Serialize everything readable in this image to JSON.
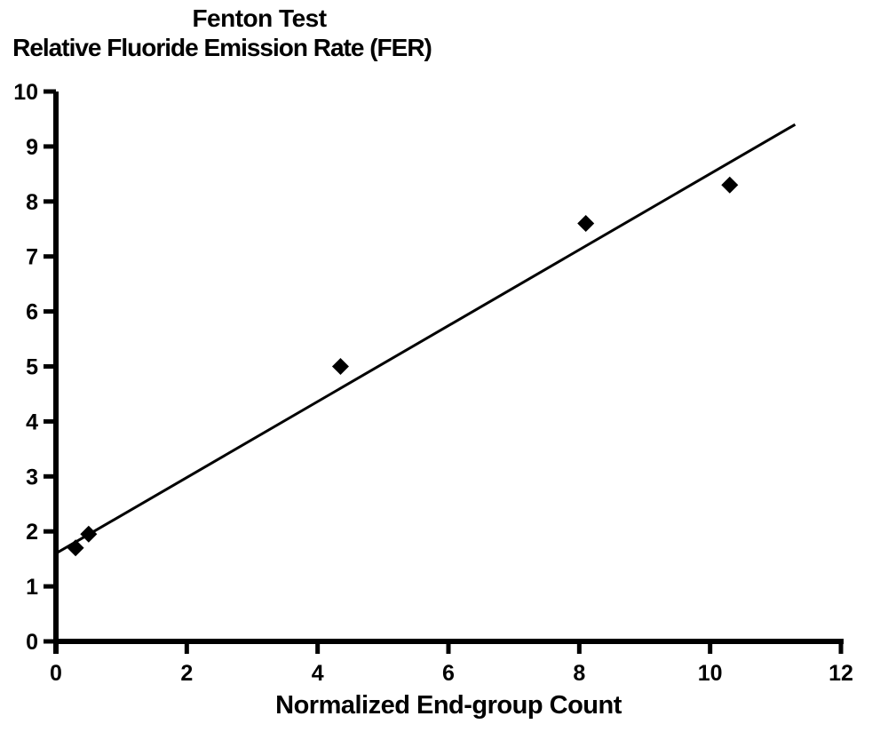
{
  "chart_data": {
    "type": "scatter",
    "title": "Fenton Test",
    "subtitle": "Relative Fluoride Emission Rate (FER)",
    "xlabel": "Normalized End-group Count",
    "ylabel": "",
    "xlim": [
      0,
      12
    ],
    "ylim": [
      0,
      10
    ],
    "xticks": [
      0,
      2,
      4,
      6,
      8,
      10,
      12
    ],
    "yticks": [
      0,
      1,
      2,
      3,
      4,
      5,
      6,
      7,
      8,
      9,
      10
    ],
    "grid": false,
    "legend": "none",
    "marker": "diamond",
    "series": [
      {
        "name": "FER",
        "points": [
          {
            "x": 0.3,
            "y": 1.7
          },
          {
            "x": 0.5,
            "y": 1.95
          },
          {
            "x": 4.35,
            "y": 5.0
          },
          {
            "x": 8.1,
            "y": 7.6
          },
          {
            "x": 10.3,
            "y": 8.3
          }
        ]
      }
    ],
    "trendline": {
      "x_start": 0,
      "y_start": 1.6,
      "x_end": 11.3,
      "y_end": 9.4
    },
    "colors": {
      "ink": "#000000",
      "background": "#ffffff"
    }
  }
}
